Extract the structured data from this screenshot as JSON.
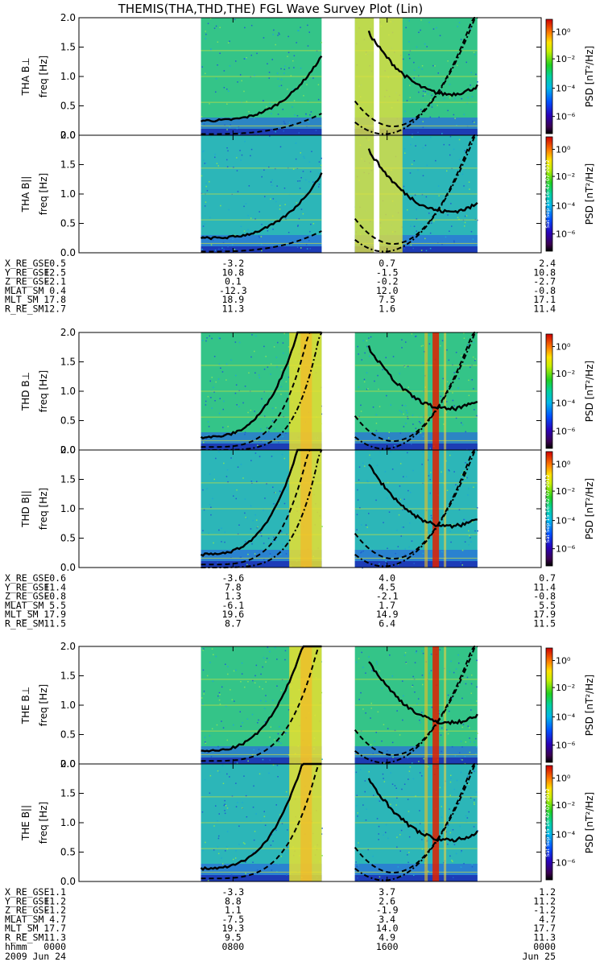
{
  "chart_data": {
    "type": "heatmap",
    "title": "THEMIS(THA,THD,THE) FGL Wave Survey Plot (Lin)",
    "x": {
      "tick_labels": [
        "0000",
        "0800",
        "1600",
        "0000"
      ],
      "dates": [
        "Jun 24",
        "Jun 25"
      ],
      "year": "2009",
      "time_label": "hhmm"
    },
    "ylim": [
      0.0,
      2.0
    ],
    "y_ticks": [
      "0.0",
      "0.5",
      "1.0",
      "1.5",
      "2.0"
    ],
    "colorbar": {
      "label": "PSD [nT²/Hz]",
      "ticks": [
        "10⁰",
        "10⁻²",
        "10⁻⁴",
        "10⁻⁶"
      ],
      "colormap": "rainbow"
    },
    "footnote": "Sat Sep 15 16:42:07 2012",
    "panels": [
      {
        "probe": "THA",
        "component": "THA B⊥",
        "ylabel": "freq [Hz]"
      },
      {
        "probe": "THA",
        "component": "THA B||",
        "ylabel": "freq [Hz]"
      },
      {
        "probe": "THD",
        "component": "THD B⊥",
        "ylabel": "freq [Hz]"
      },
      {
        "probe": "THD",
        "component": "THD B||",
        "ylabel": "freq [Hz]"
      },
      {
        "probe": "THE",
        "component": "THE B⊥",
        "ylabel": "freq [Hz]"
      },
      {
        "probe": "THE",
        "component": "THE B||",
        "ylabel": "freq [Hz]"
      }
    ],
    "ephemeris": [
      {
        "probe": "THA",
        "rows": [
          {
            "name": "X_RE_GSE",
            "values": [
              "0.5",
              "-3.2",
              "0.7",
              "2.4"
            ]
          },
          {
            "name": "Y_RE_GSE",
            "values": [
              "12.5",
              "10.8",
              "-1.5",
              "10.8"
            ]
          },
          {
            "name": "Z_RE_GSE",
            "values": [
              "-2.1",
              "0.1",
              "-0.2",
              "-2.7"
            ]
          },
          {
            "name": "MLAT_SM",
            "values": [
              "0.4",
              "-12.3",
              "12.0",
              "-0.8"
            ]
          },
          {
            "name": "MLT_SM",
            "values": [
              "17.8",
              "18.9",
              "7.5",
              "17.1"
            ]
          },
          {
            "name": "R_RE_SM",
            "values": [
              "12.7",
              "11.3",
              "1.6",
              "11.4"
            ]
          }
        ]
      },
      {
        "probe": "THD",
        "rows": [
          {
            "name": "X_RE_GSE",
            "values": [
              "0.6",
              "-3.6",
              "4.0",
              "0.7"
            ]
          },
          {
            "name": "Y_RE_GSE",
            "values": [
              "11.4",
              "7.8",
              "4.5",
              "11.4"
            ]
          },
          {
            "name": "Z_RE_GSE",
            "values": [
              "-0.8",
              "1.3",
              "-2.1",
              "-0.8"
            ]
          },
          {
            "name": "MLAT_SM",
            "values": [
              "5.5",
              "-6.1",
              "1.7",
              "5.5"
            ]
          },
          {
            "name": "MLT_SM",
            "values": [
              "17.9",
              "19.6",
              "14.9",
              "17.9"
            ]
          },
          {
            "name": "R_RE_SM",
            "values": [
              "11.5",
              "8.7",
              "6.4",
              "11.5"
            ]
          }
        ]
      },
      {
        "probe": "THE",
        "rows": [
          {
            "name": "X_RE_GSE",
            "values": [
              "1.1",
              "-3.3",
              "3.7",
              "1.2"
            ]
          },
          {
            "name": "Y_RE_GSE",
            "values": [
              "11.2",
              "8.8",
              "2.6",
              "11.2"
            ]
          },
          {
            "name": "Z_RE_GSE",
            "values": [
              "-1.2",
              "1.1",
              "-1.9",
              "-1.2"
            ]
          },
          {
            "name": "MLAT_SM",
            "values": [
              "4.7",
              "-7.5",
              "3.4",
              "4.7"
            ]
          },
          {
            "name": "MLT_SM",
            "values": [
              "17.7",
              "19.3",
              "14.0",
              "17.7"
            ]
          },
          {
            "name": "R_RE_SM",
            "values": [
              "11.3",
              "9.5",
              "4.9",
              "11.3"
            ]
          }
        ]
      }
    ]
  }
}
